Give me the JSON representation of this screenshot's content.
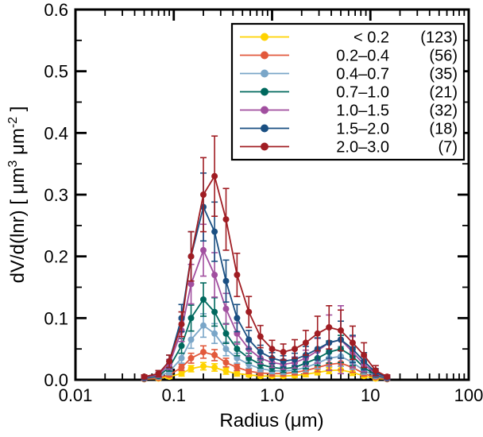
{
  "figure": {
    "background": "#ffffff"
  },
  "chart_data": {
    "type": "line",
    "title": "",
    "x": [
      0.05,
      0.07,
      0.09,
      0.12,
      0.15,
      0.2,
      0.26,
      0.34,
      0.44,
      0.58,
      0.76,
      1.0,
      1.3,
      1.7,
      2.2,
      2.9,
      3.8,
      5.0,
      6.6,
      8.6,
      11.3,
      14.8
    ],
    "x_axis": {
      "title": "Radius (μm)",
      "scale": "log",
      "min": 0.01,
      "max": 100,
      "ticks": [
        {
          "v": 0.01,
          "label": "0.01"
        },
        {
          "v": 0.1,
          "label": "0.1"
        },
        {
          "v": 1,
          "label": "1.0"
        },
        {
          "v": 10,
          "label": "10"
        },
        {
          "v": 100,
          "label": "100"
        }
      ]
    },
    "y_axis": {
      "min": 0,
      "max": 0.6,
      "minor_step": 0.05,
      "title_text": "dV/d(lnr) [ μm3 μm-2 ]",
      "title_parts": [
        {
          "t": "dV/d(lnr) [ "
        },
        {
          "t": "μm"
        },
        {
          "sup": "3"
        },
        {
          "t": " μm"
        },
        {
          "sup": "-2"
        },
        {
          "t": " ]"
        }
      ],
      "ticks": [
        {
          "v": 0.0,
          "label": "0.0"
        },
        {
          "v": 0.1,
          "label": "0.1"
        },
        {
          "v": 0.2,
          "label": "0.2"
        },
        {
          "v": 0.3,
          "label": "0.3"
        },
        {
          "v": 0.4,
          "label": "0.4"
        },
        {
          "v": 0.5,
          "label": "0.5"
        },
        {
          "v": 0.6,
          "label": "0.6"
        }
      ]
    },
    "legend": {
      "position": "top-right"
    },
    "series": [
      {
        "id": "lt-0.2",
        "label": "< 0.2",
        "count": "(123)",
        "color": "#FFD300",
        "values": [
          0.001,
          0.002,
          0.005,
          0.01,
          0.018,
          0.022,
          0.02,
          0.014,
          0.01,
          0.008,
          0.006,
          0.006,
          0.006,
          0.007,
          0.009,
          0.012,
          0.015,
          0.016,
          0.012,
          0.006,
          0.002,
          0.001
        ],
        "errors": [
          0.001,
          0.002,
          0.003,
          0.004,
          0.005,
          0.006,
          0.006,
          0.005,
          0.004,
          0.003,
          0.003,
          0.003,
          0.003,
          0.003,
          0.004,
          0.004,
          0.005,
          0.006,
          0.005,
          0.003,
          0.002,
          0.001
        ]
      },
      {
        "id": "0.2-0.4",
        "label": "0.2–0.4",
        "count": "(56)",
        "color": "#E2593C",
        "values": [
          0.001,
          0.003,
          0.008,
          0.02,
          0.035,
          0.045,
          0.04,
          0.028,
          0.02,
          0.014,
          0.011,
          0.01,
          0.01,
          0.012,
          0.015,
          0.02,
          0.025,
          0.027,
          0.02,
          0.01,
          0.004,
          0.001
        ],
        "errors": [
          0.002,
          0.002,
          0.003,
          0.005,
          0.008,
          0.01,
          0.009,
          0.007,
          0.005,
          0.004,
          0.004,
          0.004,
          0.004,
          0.004,
          0.005,
          0.007,
          0.009,
          0.011,
          0.008,
          0.004,
          0.002,
          0.002
        ]
      },
      {
        "id": "0.4-0.7",
        "label": "0.4–0.7",
        "count": "(35)",
        "color": "#7AA6C8",
        "values": [
          0.002,
          0.005,
          0.013,
          0.035,
          0.065,
          0.088,
          0.075,
          0.05,
          0.035,
          0.025,
          0.018,
          0.015,
          0.014,
          0.016,
          0.02,
          0.027,
          0.035,
          0.038,
          0.028,
          0.015,
          0.006,
          0.002
        ],
        "errors": [
          0.002,
          0.003,
          0.005,
          0.008,
          0.014,
          0.019,
          0.016,
          0.011,
          0.008,
          0.006,
          0.005,
          0.005,
          0.005,
          0.005,
          0.007,
          0.009,
          0.013,
          0.016,
          0.011,
          0.006,
          0.003,
          0.002
        ]
      },
      {
        "id": "0.7-1.0",
        "label": "0.7–1.0",
        "count": "(21)",
        "color": "#00695E",
        "values": [
          0.002,
          0.006,
          0.02,
          0.055,
          0.1,
          0.13,
          0.11,
          0.075,
          0.05,
          0.035,
          0.025,
          0.02,
          0.018,
          0.02,
          0.027,
          0.035,
          0.045,
          0.05,
          0.038,
          0.02,
          0.008,
          0.002
        ],
        "errors": [
          0.002,
          0.003,
          0.006,
          0.012,
          0.021,
          0.027,
          0.023,
          0.016,
          0.011,
          0.008,
          0.006,
          0.006,
          0.006,
          0.007,
          0.009,
          0.012,
          0.018,
          0.022,
          0.015,
          0.008,
          0.004,
          0.002
        ]
      },
      {
        "id": "1.0-1.5",
        "label": "1.0–1.5",
        "count": "(32)",
        "color": "#A14F9F",
        "values": [
          0.003,
          0.008,
          0.025,
          0.08,
          0.155,
          0.21,
          0.17,
          0.115,
          0.075,
          0.05,
          0.035,
          0.028,
          0.025,
          0.028,
          0.035,
          0.047,
          0.06,
          0.065,
          0.045,
          0.025,
          0.01,
          0.003
        ],
        "errors": [
          0.003,
          0.004,
          0.008,
          0.018,
          0.032,
          0.042,
          0.036,
          0.025,
          0.017,
          0.012,
          0.009,
          0.008,
          0.008,
          0.009,
          0.013,
          0.02,
          0.045,
          0.055,
          0.025,
          0.012,
          0.005,
          0.003
        ]
      },
      {
        "id": "1.5-2.0",
        "label": "1.5–2.0",
        "count": "(18)",
        "color": "#1A4F82",
        "values": [
          0.004,
          0.01,
          0.03,
          0.1,
          0.2,
          0.28,
          0.24,
          0.16,
          0.1,
          0.065,
          0.045,
          0.035,
          0.03,
          0.033,
          0.04,
          0.05,
          0.06,
          0.065,
          0.05,
          0.03,
          0.012,
          0.004
        ],
        "errors": [
          0.003,
          0.005,
          0.01,
          0.022,
          0.04,
          0.055,
          0.048,
          0.034,
          0.022,
          0.015,
          0.011,
          0.009,
          0.009,
          0.01,
          0.014,
          0.018,
          0.025,
          0.03,
          0.022,
          0.014,
          0.006,
          0.003
        ]
      },
      {
        "id": "2.0-3.0",
        "label": "2.0–3.0",
        "count": "(7)",
        "color": "#A01D23",
        "values": [
          0.005,
          0.01,
          0.03,
          0.09,
          0.2,
          0.3,
          0.33,
          0.26,
          0.17,
          0.11,
          0.07,
          0.05,
          0.045,
          0.05,
          0.06,
          0.075,
          0.085,
          0.08,
          0.06,
          0.04,
          0.015,
          0.005
        ],
        "errors": [
          0.003,
          0.005,
          0.01,
          0.02,
          0.04,
          0.06,
          0.065,
          0.05,
          0.035,
          0.025,
          0.018,
          0.014,
          0.013,
          0.015,
          0.02,
          0.028,
          0.035,
          0.033,
          0.027,
          0.02,
          0.008,
          0.003
        ]
      }
    ]
  }
}
